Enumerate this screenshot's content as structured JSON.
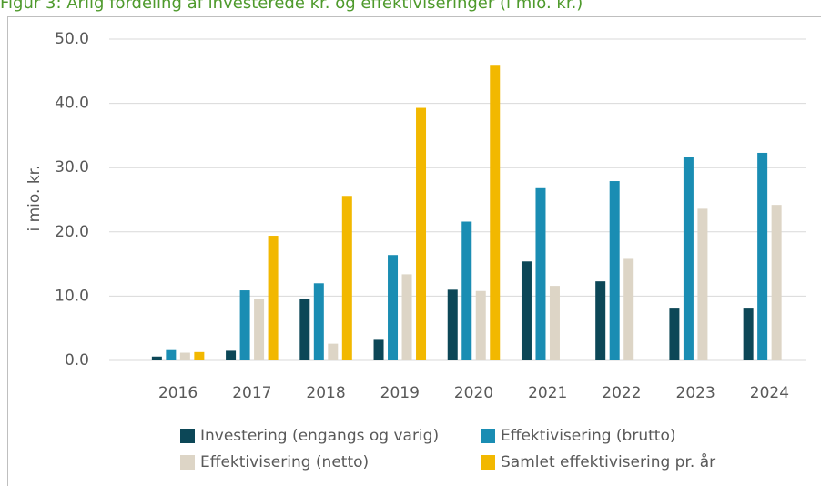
{
  "chart_data": {
    "type": "bar",
    "title": "Figur 3: Årlig fordeling af investerede kr. og effektiviseringer (i mio. kr.)",
    "ylabel": "i mio. kr.",
    "categories": [
      "2016",
      "2017",
      "2018",
      "2019",
      "2020",
      "2021",
      "2022",
      "2023",
      "2024"
    ],
    "series": [
      {
        "name": "Investering (engangs og varig)",
        "color": "#0c4757",
        "values": [
          0.6,
          1.5,
          9.6,
          3.2,
          11.0,
          15.4,
          12.3,
          8.2,
          8.2
        ]
      },
      {
        "name": "Effektivisering (brutto)",
        "color": "#1a8db3",
        "values": [
          1.6,
          10.9,
          12.0,
          16.4,
          21.6,
          26.8,
          27.9,
          31.6,
          32.3
        ]
      },
      {
        "name": "Effektivisering (netto)",
        "color": "#ddd5c6",
        "values": [
          1.2,
          9.6,
          2.6,
          13.4,
          10.8,
          11.6,
          15.8,
          23.6,
          24.2
        ]
      },
      {
        "name": "Samlet effektivisering pr. år",
        "color": "#f2b800",
        "values": [
          1.3,
          19.4,
          25.6,
          39.3,
          46.0,
          null,
          null,
          null,
          null
        ]
      }
    ],
    "ylim": [
      0,
      50
    ],
    "yticks": [
      {
        "value": 0,
        "label": "0.0"
      },
      {
        "value": 10,
        "label": "10.0"
      },
      {
        "value": 20,
        "label": "20.0"
      },
      {
        "value": 30,
        "label": "30.0"
      },
      {
        "value": 40,
        "label": "40.0"
      },
      {
        "value": 50,
        "label": "50.0"
      }
    ],
    "grid": true
  }
}
